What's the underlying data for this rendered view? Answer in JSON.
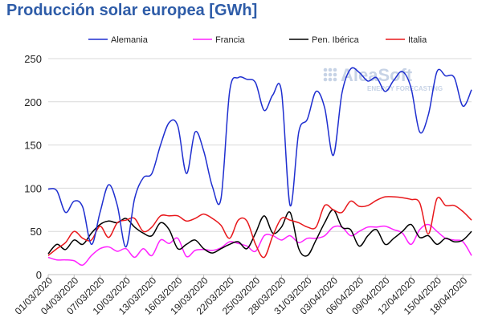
{
  "chart_data": {
    "type": "line",
    "title": "Producción solar europea [GWh]",
    "ylim": [
      0,
      250
    ],
    "yticks": [
      0,
      50,
      100,
      150,
      200,
      250
    ],
    "grid": true,
    "legend_position": "top",
    "watermark": {
      "brand": "AleaSoft",
      "tagline": "ENERGY FORECASTING"
    },
    "x": [
      "01/03/2020",
      "02/03/2020",
      "03/03/2020",
      "04/03/2020",
      "05/03/2020",
      "06/03/2020",
      "07/03/2020",
      "08/03/2020",
      "09/03/2020",
      "10/03/2020",
      "11/03/2020",
      "12/03/2020",
      "13/03/2020",
      "14/03/2020",
      "15/03/2020",
      "16/03/2020",
      "17/03/2020",
      "18/03/2020",
      "19/03/2020",
      "20/03/2020",
      "21/03/2020",
      "22/03/2020",
      "23/03/2020",
      "24/03/2020",
      "25/03/2020",
      "26/03/2020",
      "27/03/2020",
      "28/03/2020",
      "29/03/2020",
      "30/03/2020",
      "31/03/2020",
      "01/04/2020",
      "02/04/2020",
      "03/04/2020",
      "04/04/2020",
      "05/04/2020",
      "06/04/2020",
      "07/04/2020",
      "08/04/2020",
      "09/04/2020",
      "10/04/2020",
      "11/04/2020",
      "12/04/2020",
      "13/04/2020",
      "14/04/2020",
      "15/04/2020",
      "16/04/2020",
      "17/04/2020",
      "18/04/2020",
      "19/04/2020"
    ],
    "xtick_labels": [
      "01/03/2020",
      "04/03/2020",
      "07/03/2020",
      "10/03/2020",
      "13/03/2020",
      "16/03/2020",
      "19/03/2020",
      "22/03/2020",
      "25/03/2020",
      "28/03/2020",
      "31/03/2020",
      "03/04/2020",
      "06/04/2020",
      "09/04/2020",
      "12/04/2020",
      "15/04/2020",
      "18/04/2020"
    ],
    "series": [
      {
        "name": "Alemania",
        "color": "#1f2fd0",
        "values": [
          99,
          97,
          72,
          85,
          78,
          35,
          72,
          104,
          80,
          32,
          88,
          112,
          117,
          150,
          176,
          172,
          117,
          165,
          143,
          102,
          88,
          212,
          228,
          226,
          222,
          190,
          208,
          212,
          80,
          165,
          180,
          212,
          193,
          138,
          210,
          238,
          234,
          224,
          228,
          212,
          225,
          235,
          216,
          165,
          185,
          235,
          230,
          228,
          195,
          214
        ]
      },
      {
        "name": "Francia",
        "color": "#ff22ff",
        "values": [
          20,
          17,
          17,
          16,
          11,
          22,
          30,
          32,
          27,
          30,
          20,
          30,
          22,
          40,
          36,
          42,
          21,
          28,
          29,
          28,
          31,
          38,
          36,
          33,
          27,
          45,
          45,
          40,
          45,
          37,
          42,
          42,
          45,
          55,
          55,
          45,
          50,
          55,
          55,
          56,
          52,
          48,
          35,
          52,
          58,
          50,
          42,
          40,
          38,
          22
        ]
      },
      {
        "name": "Pen. Ibérica",
        "color": "#000000",
        "values": [
          24,
          35,
          29,
          40,
          35,
          48,
          58,
          62,
          60,
          65,
          55,
          48,
          45,
          60,
          52,
          30,
          35,
          40,
          30,
          25,
          30,
          35,
          38,
          30,
          48,
          68,
          48,
          55,
          72,
          30,
          22,
          40,
          60,
          75,
          55,
          52,
          33,
          45,
          52,
          35,
          42,
          50,
          58,
          43,
          45,
          35,
          42,
          38,
          40,
          50
        ]
      },
      {
        "name": "Italia",
        "color": "#e8181c",
        "values": [
          22,
          30,
          37,
          50,
          42,
          40,
          56,
          43,
          60,
          63,
          65,
          50,
          55,
          68,
          68,
          68,
          62,
          65,
          70,
          65,
          57,
          42,
          63,
          62,
          35,
          20,
          45,
          65,
          63,
          60,
          55,
          55,
          80,
          75,
          72,
          85,
          79,
          80,
          86,
          90,
          90,
          89,
          87,
          83,
          47,
          88,
          80,
          80,
          73,
          63
        ]
      }
    ]
  }
}
